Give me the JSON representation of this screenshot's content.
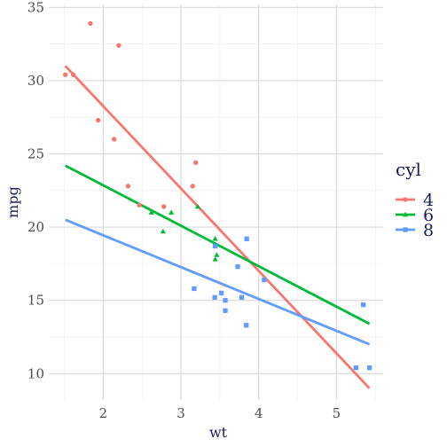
{
  "chart_data": {
    "type": "scatter",
    "title": "",
    "xlabel": "wt",
    "ylabel": "mpg",
    "xlim": [
      1.3,
      5.6
    ],
    "ylim": [
      8.2,
      35.2
    ],
    "x_ticks": [
      2,
      3,
      4,
      5
    ],
    "x_tick_labels": [
      "2",
      "3",
      "4",
      "5"
    ],
    "y_ticks": [
      10,
      15,
      20,
      25,
      30,
      35
    ],
    "y_tick_labels": [
      "10",
      "15",
      "20",
      "25",
      "30",
      "35"
    ],
    "grid": true,
    "legend": {
      "title": "cyl",
      "position": "right"
    },
    "series": [
      {
        "name": "4",
        "color": "#F8766D",
        "marker": "circle",
        "points": [
          [
            1.513,
            30.4
          ],
          [
            1.615,
            30.4
          ],
          [
            1.835,
            33.9
          ],
          [
            1.935,
            27.3
          ],
          [
            2.14,
            26.0
          ],
          [
            2.2,
            32.4
          ],
          [
            2.32,
            22.8
          ],
          [
            2.465,
            21.5
          ],
          [
            2.78,
            21.4
          ],
          [
            3.15,
            22.8
          ],
          [
            3.19,
            24.4
          ]
        ],
        "fit_line": [
          [
            1.513,
            31.0
          ],
          [
            5.424,
            9.0
          ]
        ]
      },
      {
        "name": "6",
        "color": "#00BA38",
        "marker": "triangle",
        "points": [
          [
            2.62,
            21.0
          ],
          [
            2.875,
            21.0
          ],
          [
            2.77,
            19.7
          ],
          [
            3.215,
            21.4
          ],
          [
            3.44,
            18.7
          ],
          [
            3.44,
            19.2
          ],
          [
            3.46,
            18.1
          ],
          [
            3.44,
            17.8
          ]
        ],
        "fit_line": [
          [
            1.513,
            24.2
          ],
          [
            5.424,
            13.4
          ]
        ]
      },
      {
        "name": "8",
        "color": "#619CFF",
        "marker": "square",
        "points": [
          [
            3.17,
            15.8
          ],
          [
            3.435,
            15.2
          ],
          [
            3.44,
            18.7
          ],
          [
            3.52,
            15.5
          ],
          [
            3.57,
            14.3
          ],
          [
            3.57,
            15.0
          ],
          [
            3.73,
            17.3
          ],
          [
            3.78,
            15.2
          ],
          [
            3.84,
            13.3
          ],
          [
            3.845,
            19.2
          ],
          [
            4.07,
            16.4
          ],
          [
            5.25,
            10.4
          ],
          [
            5.345,
            14.7
          ],
          [
            5.424,
            10.4
          ]
        ],
        "fit_line": [
          [
            1.513,
            20.5
          ],
          [
            5.424,
            12.0
          ]
        ]
      }
    ]
  }
}
